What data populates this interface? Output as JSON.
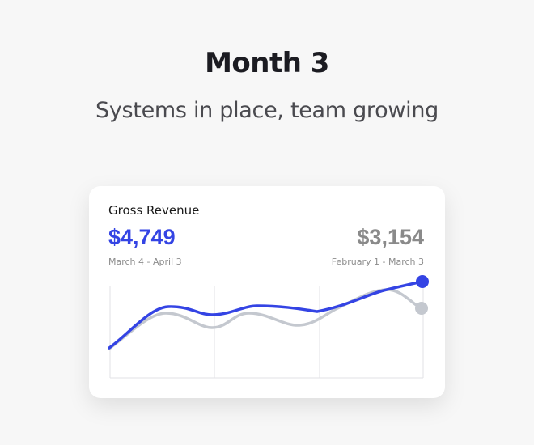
{
  "heading": {
    "title": "Month 3",
    "subtitle": "Systems in place, team growing"
  },
  "card": {
    "title": "Gross Revenue",
    "current": {
      "value": "$4,749",
      "range": "March 4 - April 3",
      "color": "#3444e4"
    },
    "previous": {
      "value": "$3,154",
      "range": "February 1 - March 3",
      "color": "#c4c8cf"
    }
  }
}
